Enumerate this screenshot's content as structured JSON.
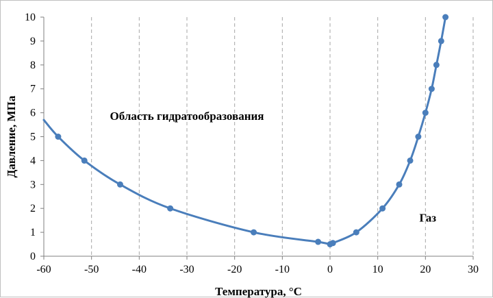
{
  "chart_data": {
    "type": "line",
    "xlabel": "Температура, °С",
    "ylabel": "Давление, МПа",
    "xlim": [
      -60,
      30
    ],
    "ylim": [
      0,
      10
    ],
    "x_ticks": [
      "-60",
      "-50",
      "-40",
      "-30",
      "-20",
      "-10",
      "0",
      "10",
      "20",
      "30"
    ],
    "y_ticks": [
      "0",
      "1",
      "2",
      "3",
      "4",
      "5",
      "6",
      "7",
      "8",
      "9",
      "10"
    ],
    "grid": "vertical-dashed",
    "color": "#4a7ebb",
    "curve_start": {
      "x": -60,
      "y": 5.7
    },
    "points": [
      {
        "x": -57,
        "y": 5
      },
      {
        "x": -51.5,
        "y": 4
      },
      {
        "x": -44,
        "y": 3
      },
      {
        "x": -33.5,
        "y": 2
      },
      {
        "x": -16,
        "y": 1
      },
      {
        "x": -2.5,
        "y": 0.6
      },
      {
        "x": 0,
        "y": 0.5
      },
      {
        "x": 0.6,
        "y": 0.55
      },
      {
        "x": 5.5,
        "y": 1
      },
      {
        "x": 11,
        "y": 2
      },
      {
        "x": 14.5,
        "y": 3
      },
      {
        "x": 16.8,
        "y": 4
      },
      {
        "x": 18.5,
        "y": 5
      },
      {
        "x": 20,
        "y": 6
      },
      {
        "x": 21.3,
        "y": 7
      },
      {
        "x": 22.3,
        "y": 8
      },
      {
        "x": 23.3,
        "y": 9
      },
      {
        "x": 24.2,
        "y": 10
      }
    ],
    "annotations": [
      {
        "text": "Область гидратообразования",
        "x": -30,
        "y": 5.7
      },
      {
        "text": "Газ",
        "x": 20.5,
        "y": 1.45
      }
    ]
  }
}
